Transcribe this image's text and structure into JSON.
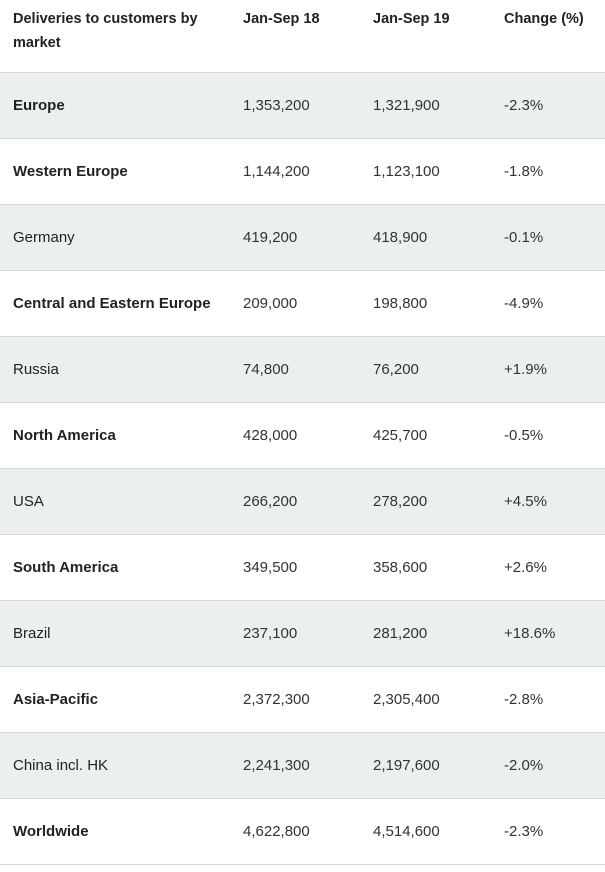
{
  "table": {
    "headers": [
      "Deliveries to customers by market",
      "Jan-Sep 18",
      "Jan-Sep 19",
      "Change (%)"
    ],
    "rows": [
      {
        "market": "Europe",
        "jan_sep_18": "1,353,200",
        "jan_sep_19": "1,321,900",
        "change": "-2.3%"
      },
      {
        "market": "Western Europe",
        "jan_sep_18": "1,144,200",
        "jan_sep_19": "1,123,100",
        "change": "-1.8%"
      },
      {
        "market": "Germany",
        "jan_sep_18": "419,200",
        "jan_sep_19": "418,900",
        "change": "-0.1%"
      },
      {
        "market": "Central and Eastern Europe",
        "jan_sep_18": "209,000",
        "jan_sep_19": "198,800",
        "change": "-4.9%"
      },
      {
        "market": "Russia",
        "jan_sep_18": "74,800",
        "jan_sep_19": "76,200",
        "change": "+1.9%"
      },
      {
        "market": "North America",
        "jan_sep_18": "428,000",
        "jan_sep_19": "425,700",
        "change": "-0.5%"
      },
      {
        "market": "USA",
        "jan_sep_18": "266,200",
        "jan_sep_19": "278,200",
        "change": "+4.5%"
      },
      {
        "market": "South America",
        "jan_sep_18": "349,500",
        "jan_sep_19": "358,600",
        "change": "+2.6%"
      },
      {
        "market": "Brazil",
        "jan_sep_18": "237,100",
        "jan_sep_19": "281,200",
        "change": "+18.6%"
      },
      {
        "market": "Asia-Pacific",
        "jan_sep_18": "2,372,300",
        "jan_sep_19": "2,305,400",
        "change": "-2.8%"
      },
      {
        "market": "China incl. HK",
        "jan_sep_18": "2,241,300",
        "jan_sep_19": "2,197,600",
        "change": "-2.0%"
      },
      {
        "market": "Worldwide",
        "jan_sep_18": "4,622,800",
        "jan_sep_19": "4,514,600",
        "change": "-2.3%"
      }
    ]
  },
  "colors": {
    "row_shade": "#ebf0ec",
    "border": "#d7d7d7",
    "text": "#222222"
  }
}
